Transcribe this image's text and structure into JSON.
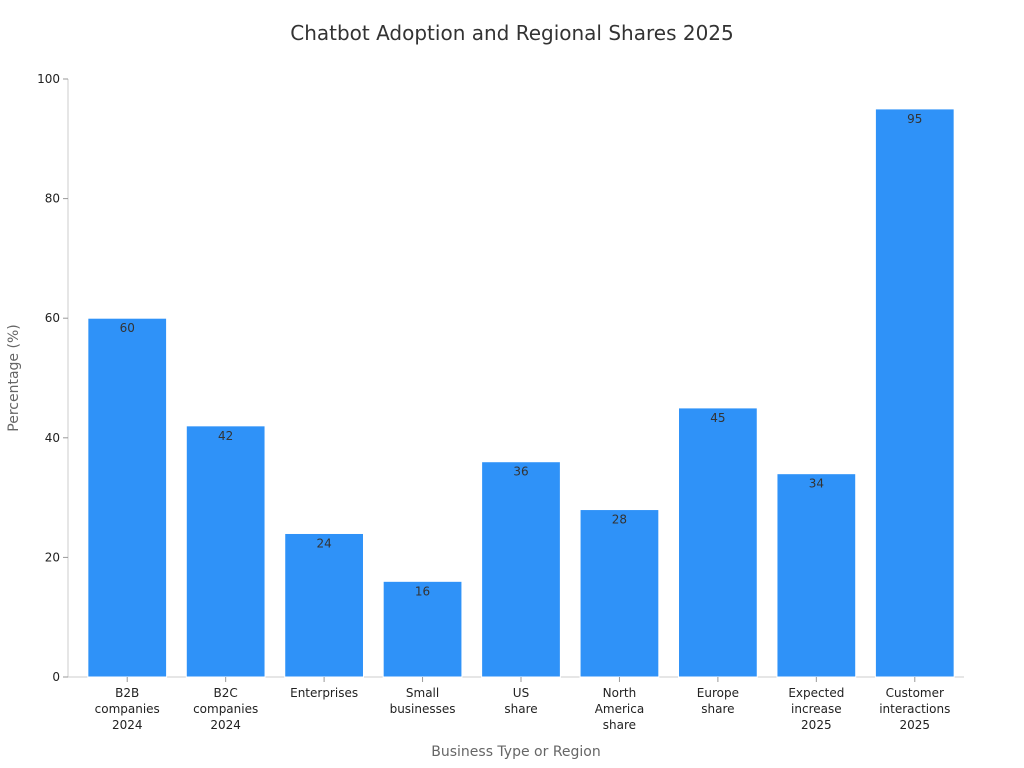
{
  "chart_data": {
    "type": "bar",
    "title": "Chatbot Adoption and Regional Shares 2025",
    "xlabel": "Business Type or Region",
    "ylabel": "Percentage (%)",
    "ylim": [
      0,
      100
    ],
    "yticks": [
      0,
      20,
      40,
      60,
      80,
      100
    ],
    "categories": [
      "B2B companies 2024",
      "B2C companies 2024",
      "Enterprises",
      "Small businesses",
      "US share",
      "North America share",
      "Europe share",
      "Expected increase 2025",
      "Customer interactions 2025"
    ],
    "category_lines": [
      [
        "B2B",
        "companies",
        "2024"
      ],
      [
        "B2C",
        "companies",
        "2024"
      ],
      [
        "Enterprises"
      ],
      [
        "Small",
        "businesses"
      ],
      [
        "US",
        "share"
      ],
      [
        "North",
        "America",
        "share"
      ],
      [
        "Europe",
        "share"
      ],
      [
        "Expected",
        "increase",
        "2025"
      ],
      [
        "Customer",
        "interactions",
        "2025"
      ]
    ],
    "values": [
      60,
      42,
      24,
      16,
      36,
      28,
      45,
      34,
      95
    ],
    "bar_color": "#2f92f8",
    "grid": false,
    "legend": false
  }
}
